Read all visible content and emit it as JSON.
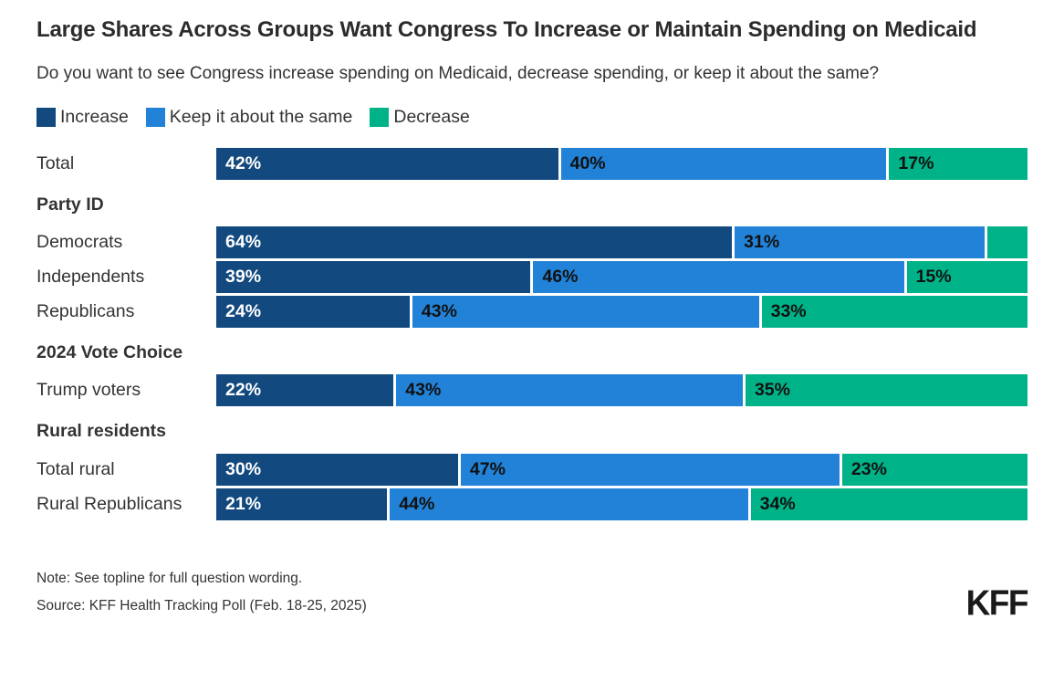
{
  "title": "Large Shares Across Groups Want Congress To Increase or Maintain Spending on Medicaid",
  "subtitle": "Do you want to see Congress increase spending on Medicaid, decrease spending, or keep it about the same?",
  "colors": {
    "increase": "#12497F",
    "keep": "#2182D7",
    "decrease": "#00B287"
  },
  "legend": [
    {
      "key": "increase",
      "label": "Increase"
    },
    {
      "key": "keep",
      "label": "Keep it about the same"
    },
    {
      "key": "decrease",
      "label": "Decrease"
    }
  ],
  "chart_data": {
    "type": "bar",
    "orientation": "horizontal-stacked",
    "series_names": [
      "Increase",
      "Keep it about the same",
      "Decrease"
    ],
    "value_unit": "%",
    "axis": "none (100% stacked, labels inside segments)",
    "rows": [
      {
        "kind": "bar",
        "label": "Total",
        "values": [
          42,
          40,
          17
        ],
        "value_labels": [
          "42%",
          "40%",
          "17%"
        ]
      },
      {
        "kind": "header",
        "label": "Party ID"
      },
      {
        "kind": "bar",
        "label": "Democrats",
        "values": [
          64,
          31,
          5
        ],
        "value_labels": [
          "64%",
          "31%",
          ""
        ]
      },
      {
        "kind": "bar",
        "label": "Independents",
        "values": [
          39,
          46,
          15
        ],
        "value_labels": [
          "39%",
          "46%",
          "15%"
        ]
      },
      {
        "kind": "bar",
        "label": "Republicans",
        "values": [
          24,
          43,
          33
        ],
        "value_labels": [
          "24%",
          "43%",
          "33%"
        ]
      },
      {
        "kind": "header",
        "label": "2024 Vote Choice"
      },
      {
        "kind": "bar",
        "label": "Trump voters",
        "values": [
          22,
          43,
          35
        ],
        "value_labels": [
          "22%",
          "43%",
          "35%"
        ]
      },
      {
        "kind": "header",
        "label": "Rural residents"
      },
      {
        "kind": "bar",
        "label": "Total rural",
        "values": [
          30,
          47,
          23
        ],
        "value_labels": [
          "30%",
          "47%",
          "23%"
        ]
      },
      {
        "kind": "bar",
        "label": "Rural Republicans",
        "values": [
          21,
          44,
          34
        ],
        "value_labels": [
          "21%",
          "44%",
          "34%"
        ]
      }
    ]
  },
  "footer": {
    "note": "Note: See topline for full question wording.",
    "source": "Source: KFF Health Tracking Poll (Feb. 18-25, 2025)",
    "logo_text": "KFF"
  }
}
